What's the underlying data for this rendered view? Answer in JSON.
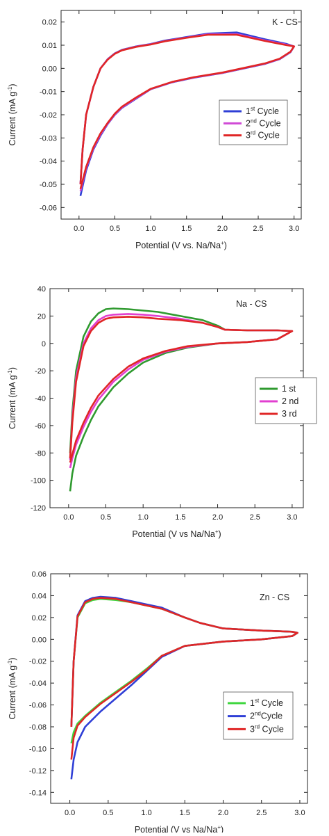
{
  "chart_data": [
    {
      "type": "line",
      "title": "",
      "label": "K - CS",
      "xlabel": "Potential (V vs. Na/Na",
      "xlabel_sup": "+",
      "xlabel_end": ")",
      "ylabel": "Current (mA g",
      "ylabel_sup": "-1",
      "ylabel_end": ")",
      "xlim": [
        -0.25,
        3.1
      ],
      "ylim": [
        -0.065,
        0.025
      ],
      "xticks": [
        "0.0",
        "0.5",
        "1.0",
        "1.5",
        "2.0",
        "2.5",
        "3.0"
      ],
      "yticks": [
        "0.02",
        "0.01",
        "0.00",
        "-0.01",
        "-0.02",
        "-0.03",
        "-0.04",
        "-0.05",
        "-0.06"
      ],
      "legend_position": "center-right",
      "series": [
        {
          "name": "1",
          "name_sup": "st",
          "name_end": " Cycle",
          "color": "#2f3fd6",
          "x": [
            0.02,
            0.1,
            0.2,
            0.3,
            0.4,
            0.5,
            0.6,
            0.8,
            1.0,
            1.3,
            1.6,
            2.0,
            2.3,
            2.6,
            2.8,
            2.95,
            3.0,
            2.9,
            2.6,
            2.2,
            1.8,
            1.5,
            1.2,
            1.0,
            0.8,
            0.6,
            0.5,
            0.4,
            0.3,
            0.2,
            0.1,
            0.05,
            0.02
          ],
          "y": [
            -0.055,
            -0.044,
            -0.035,
            -0.029,
            -0.024,
            -0.02,
            -0.017,
            -0.013,
            -0.009,
            -0.006,
            -0.004,
            -0.002,
            0.0,
            0.002,
            0.004,
            0.007,
            0.0095,
            0.0105,
            0.0125,
            0.0155,
            0.015,
            0.0135,
            0.012,
            0.0105,
            0.0095,
            0.008,
            0.0065,
            0.004,
            0.0,
            -0.008,
            -0.02,
            -0.035,
            -0.05
          ]
        },
        {
          "name": "2",
          "name_sup": "nd",
          "name_end": " Cycle",
          "color": "#d04ad6",
          "x": [
            0.02,
            0.1,
            0.2,
            0.3,
            0.4,
            0.5,
            0.6,
            0.8,
            1.0,
            1.3,
            1.6,
            2.0,
            2.3,
            2.6,
            2.8,
            2.95,
            3.0,
            2.9,
            2.6,
            2.2,
            1.8,
            1.5,
            1.2,
            1.0,
            0.8,
            0.6,
            0.5,
            0.4,
            0.3,
            0.2,
            0.1,
            0.05,
            0.02
          ],
          "y": [
            -0.053,
            -0.043,
            -0.0345,
            -0.0285,
            -0.0238,
            -0.0198,
            -0.0168,
            -0.0128,
            -0.0089,
            -0.0059,
            -0.0039,
            -0.0019,
            0.0001,
            0.0021,
            0.0041,
            0.0071,
            0.0095,
            0.0102,
            0.012,
            0.0148,
            0.0147,
            0.0133,
            0.0118,
            0.0104,
            0.0094,
            0.0079,
            0.0064,
            0.0039,
            0.0,
            -0.008,
            -0.02,
            -0.035,
            -0.05
          ]
        },
        {
          "name": "3",
          "name_sup": "rd",
          "name_end": " Cycle",
          "color": "#e02626",
          "x": [
            0.02,
            0.1,
            0.2,
            0.3,
            0.4,
            0.5,
            0.6,
            0.8,
            1.0,
            1.3,
            1.6,
            2.0,
            2.3,
            2.6,
            2.8,
            2.95,
            3.0,
            2.9,
            2.6,
            2.2,
            1.8,
            1.5,
            1.2,
            1.0,
            0.8,
            0.6,
            0.5,
            0.4,
            0.3,
            0.2,
            0.1,
            0.05,
            0.02
          ],
          "y": [
            -0.052,
            -0.0425,
            -0.034,
            -0.028,
            -0.0235,
            -0.0195,
            -0.0165,
            -0.0125,
            -0.0088,
            -0.0058,
            -0.0038,
            -0.0018,
            0.0002,
            0.0022,
            0.0042,
            0.0072,
            0.0095,
            0.01,
            0.0118,
            0.0145,
            0.0145,
            0.0132,
            0.0117,
            0.0103,
            0.0093,
            0.0078,
            0.0063,
            0.0038,
            0.0,
            -0.008,
            -0.02,
            -0.035,
            -0.05
          ]
        }
      ]
    },
    {
      "type": "line",
      "title": "",
      "label": "Na - CS",
      "xlabel": "Potential (V vs Na/Na",
      "xlabel_sup": "+",
      "xlabel_end": ")",
      "ylabel": "Current (mA g",
      "ylabel_sup": "-1",
      "ylabel_end": ")",
      "xlim": [
        -0.25,
        3.15
      ],
      "ylim": [
        -120,
        40
      ],
      "xticks": [
        "0.0",
        "0.5",
        "1.0",
        "1.5",
        "2.0",
        "2.5",
        "3.0"
      ],
      "yticks": [
        "40",
        "20",
        "0",
        "-20",
        "-40",
        "-60",
        "-80",
        "-100",
        "-120"
      ],
      "legend_position": "center-right",
      "series": [
        {
          "name": "1 st",
          "color": "#2f9a2f",
          "x": [
            0.02,
            0.05,
            0.1,
            0.2,
            0.3,
            0.4,
            0.6,
            0.8,
            1.0,
            1.3,
            1.6,
            2.0,
            2.4,
            2.8,
            3.0,
            2.8,
            2.4,
            2.1,
            2.0,
            1.8,
            1.5,
            1.2,
            1.0,
            0.8,
            0.6,
            0.5,
            0.4,
            0.3,
            0.2,
            0.1,
            0.05,
            0.02
          ],
          "y": [
            -108,
            -95,
            -82,
            -68,
            -56,
            -46,
            -32,
            -22,
            -14,
            -7,
            -3,
            0,
            1,
            3,
            9,
            9.5,
            9.5,
            10,
            13,
            17,
            20,
            23,
            24,
            25,
            25.5,
            25,
            22,
            16,
            5,
            -20,
            -50,
            -80
          ]
        },
        {
          "name": "2 nd",
          "color": "#e23fd0",
          "x": [
            0.02,
            0.05,
            0.1,
            0.2,
            0.3,
            0.4,
            0.6,
            0.8,
            1.0,
            1.3,
            1.6,
            2.0,
            2.4,
            2.8,
            3.0,
            2.8,
            2.4,
            2.1,
            2.0,
            1.8,
            1.5,
            1.2,
            1.0,
            0.8,
            0.6,
            0.5,
            0.4,
            0.3,
            0.2,
            0.1,
            0.05,
            0.02
          ],
          "y": [
            -91,
            -84,
            -74,
            -61,
            -50,
            -41,
            -28,
            -19,
            -12,
            -6,
            -2.5,
            0,
            1,
            3,
            9,
            9.5,
            9.5,
            10,
            12,
            15,
            18,
            20,
            21,
            21.5,
            21,
            20,
            17,
            11,
            0,
            -25,
            -55,
            -85
          ]
        },
        {
          "name": "3 rd",
          "color": "#e02626",
          "x": [
            0.02,
            0.05,
            0.1,
            0.2,
            0.3,
            0.4,
            0.6,
            0.8,
            1.0,
            1.3,
            1.6,
            2.0,
            2.4,
            2.8,
            3.0,
            2.8,
            2.4,
            2.1,
            2.0,
            1.8,
            1.5,
            1.2,
            1.0,
            0.8,
            0.6,
            0.5,
            0.4,
            0.3,
            0.2,
            0.1,
            0.05,
            0.02
          ],
          "y": [
            -87,
            -81,
            -71,
            -58,
            -47,
            -38,
            -26,
            -17,
            -11,
            -5.5,
            -2,
            0,
            1,
            3,
            9,
            9.5,
            9.5,
            10,
            12,
            15,
            17,
            18,
            19,
            19.5,
            19,
            18,
            15,
            9,
            -2,
            -28,
            -58,
            -84
          ]
        }
      ]
    },
    {
      "type": "line",
      "title": "",
      "label": "Zn - CS",
      "xlabel": "Potential (V vs Na/Na",
      "xlabel_sup": "+",
      "xlabel_end": ")",
      "ylabel": "Current (mA g",
      "ylabel_sup": "-1",
      "ylabel_end": ")",
      "xlim": [
        -0.25,
        3.1
      ],
      "ylim": [
        -0.15,
        0.06
      ],
      "xticks": [
        "0.0",
        "0.5",
        "1.0",
        "1.5",
        "2.0",
        "2.5",
        "3.0"
      ],
      "yticks": [
        "0.06",
        "0.04",
        "0.02",
        "0.00",
        "-0.02",
        "-0.04",
        "-0.06",
        "-0.08",
        "-0.10",
        "-0.12",
        "-0.14"
      ],
      "legend_position": "bottom-right",
      "series": [
        {
          "name": "1",
          "name_sup": "st",
          "name_end": " Cycle",
          "color": "#3ed63e",
          "x": [
            0.02,
            0.05,
            0.1,
            0.2,
            0.4,
            0.6,
            0.8,
            1.0,
            1.2,
            1.5,
            2.0,
            2.5,
            2.9,
            2.97,
            2.9,
            2.5,
            2.0,
            1.7,
            1.5,
            1.2,
            1.0,
            0.8,
            0.6,
            0.4,
            0.3,
            0.2,
            0.1,
            0.05,
            0.02
          ],
          "y": [
            -0.095,
            -0.085,
            -0.077,
            -0.07,
            -0.058,
            -0.048,
            -0.038,
            -0.027,
            -0.015,
            -0.006,
            -0.002,
            0.0,
            0.003,
            0.006,
            0.007,
            0.008,
            0.01,
            0.015,
            0.02,
            0.028,
            0.031,
            0.034,
            0.036,
            0.037,
            0.036,
            0.033,
            0.02,
            -0.02,
            -0.08
          ]
        },
        {
          "name": "2",
          "name_sup": "nd",
          "name_end": "Cycle",
          "color": "#2f3fd6",
          "x": [
            0.02,
            0.05,
            0.1,
            0.2,
            0.4,
            0.6,
            0.8,
            1.0,
            1.2,
            1.5,
            2.0,
            2.5,
            2.9,
            2.97,
            2.9,
            2.5,
            2.0,
            1.7,
            1.5,
            1.2,
            1.0,
            0.8,
            0.6,
            0.4,
            0.3,
            0.2,
            0.1,
            0.05,
            0.02
          ],
          "y": [
            -0.128,
            -0.11,
            -0.094,
            -0.08,
            -0.066,
            -0.054,
            -0.042,
            -0.029,
            -0.016,
            -0.006,
            -0.002,
            0.0,
            0.003,
            0.006,
            0.007,
            0.008,
            0.01,
            0.015,
            0.02,
            0.029,
            0.032,
            0.035,
            0.038,
            0.039,
            0.038,
            0.035,
            0.022,
            -0.02,
            -0.08
          ]
        },
        {
          "name": "3",
          "name_sup": "rd",
          "name_end": " Cycle",
          "color": "#e02626",
          "x": [
            0.02,
            0.05,
            0.1,
            0.2,
            0.4,
            0.6,
            0.8,
            1.0,
            1.2,
            1.5,
            2.0,
            2.5,
            2.9,
            2.97,
            2.9,
            2.5,
            2.0,
            1.7,
            1.5,
            1.2,
            1.0,
            0.8,
            0.6,
            0.4,
            0.3,
            0.2,
            0.1,
            0.05,
            0.02
          ],
          "y": [
            -0.11,
            -0.09,
            -0.079,
            -0.071,
            -0.059,
            -0.049,
            -0.039,
            -0.028,
            -0.015,
            -0.006,
            -0.002,
            0.0,
            0.003,
            0.006,
            0.007,
            0.008,
            0.01,
            0.015,
            0.02,
            0.028,
            0.031,
            0.034,
            0.037,
            0.038,
            0.037,
            0.034,
            0.021,
            -0.02,
            -0.08
          ]
        }
      ]
    }
  ]
}
